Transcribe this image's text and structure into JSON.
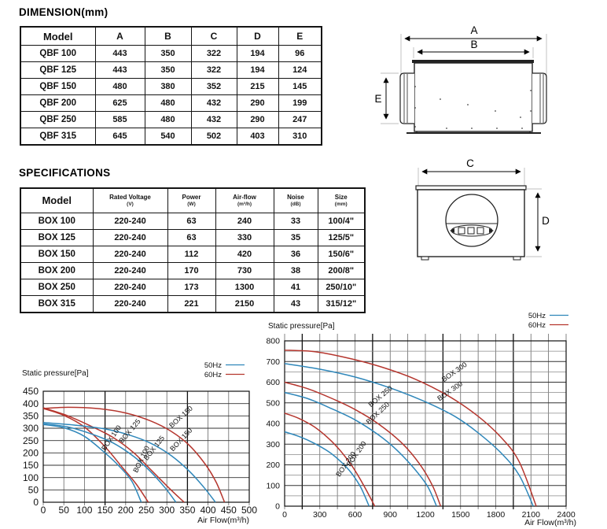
{
  "dimension_section": {
    "title": "DIMENSION(mm)",
    "table": {
      "headers": [
        "Model",
        "A",
        "B",
        "C",
        "D",
        "E"
      ],
      "rows": [
        [
          "QBF 100",
          "443",
          "350",
          "322",
          "194",
          "96"
        ],
        [
          "QBF 125",
          "443",
          "350",
          "322",
          "194",
          "124"
        ],
        [
          "QBF 150",
          "480",
          "380",
          "352",
          "215",
          "145"
        ],
        [
          "QBF 200",
          "625",
          "480",
          "432",
          "290",
          "199"
        ],
        [
          "QBF 250",
          "585",
          "480",
          "432",
          "290",
          "247"
        ],
        [
          "QBF 315",
          "645",
          "540",
          "502",
          "403",
          "310"
        ]
      ]
    }
  },
  "specifications_section": {
    "title": "SPECIFICATIONS",
    "table": {
      "headers": [
        {
          "name": "Model",
          "unit": ""
        },
        {
          "name": "Rated Voltage",
          "unit": "(V)"
        },
        {
          "name": "Power",
          "unit": "(W)"
        },
        {
          "name": "Air-flow",
          "unit": "(m³/h)"
        },
        {
          "name": "Noise",
          "unit": "(dB)"
        },
        {
          "name": "Size",
          "unit": "(mm)"
        }
      ],
      "rows": [
        [
          "BOX 100",
          "220-240",
          "63",
          "240",
          "33",
          "100/4\""
        ],
        [
          "BOX 125",
          "220-240",
          "63",
          "330",
          "35",
          "125/5\""
        ],
        [
          "BOX 150",
          "220-240",
          "112",
          "420",
          "36",
          "150/6\""
        ],
        [
          "BOX 200",
          "220-240",
          "170",
          "730",
          "38",
          "200/8\""
        ],
        [
          "BOX 250",
          "220-240",
          "173",
          "1300",
          "41",
          "250/10\""
        ],
        [
          "BOX 315",
          "220-240",
          "221",
          "2150",
          "43",
          "315/12\""
        ]
      ]
    }
  },
  "diagrams": {
    "side_view": {
      "a": "A",
      "b": "B",
      "e": "E"
    },
    "front_view": {
      "c": "C",
      "d": "D"
    }
  },
  "chart_data": [
    {
      "type": "line",
      "title": "Static pressure[Pa]",
      "xlabel": "Air Flow(m³/h)",
      "ylabel": "Static pressure[Pa]",
      "xlim": [
        0,
        500
      ],
      "ylim": [
        0,
        450
      ],
      "xtick_step": 50,
      "ytick_step": 50,
      "grid": true,
      "dark_vlines": [
        150,
        350
      ],
      "legend": [
        {
          "label": "50Hz",
          "color": "#2f87ba"
        },
        {
          "label": "60Hz",
          "color": "#b5362e"
        }
      ],
      "series": [
        {
          "name": "BOX 100",
          "freq": "50Hz",
          "color": "#2f87ba",
          "points": [
            [
              0,
              315
            ],
            [
              50,
              302
            ],
            [
              100,
              267
            ],
            [
              150,
              200
            ],
            [
              185,
              145
            ],
            [
              215,
              85
            ],
            [
              238,
              0
            ]
          ]
        },
        {
          "name": "BOX 100",
          "freq": "60Hz",
          "color": "#b5362e",
          "points": [
            [
              0,
              380
            ],
            [
              50,
              352
            ],
            [
              100,
              305
            ],
            [
              150,
              225
            ],
            [
              190,
              145
            ],
            [
              225,
              75
            ],
            [
              255,
              0
            ]
          ]
        },
        {
          "name": "BOX 125",
          "freq": "50Hz",
          "color": "#2f87ba",
          "points": [
            [
              0,
              318
            ],
            [
              60,
              305
            ],
            [
              120,
              275
            ],
            [
              170,
              240
            ],
            [
              220,
              185
            ],
            [
              260,
              125
            ],
            [
              295,
              60
            ],
            [
              322,
              0
            ]
          ]
        },
        {
          "name": "BOX 125",
          "freq": "60Hz",
          "color": "#b5362e",
          "points": [
            [
              0,
              383
            ],
            [
              60,
              350
            ],
            [
              120,
              305
            ],
            [
              170,
              262
            ],
            [
              220,
              200
            ],
            [
              265,
              125
            ],
            [
              310,
              50
            ],
            [
              342,
              0
            ]
          ]
        },
        {
          "name": "BOX 150",
          "freq": "50Hz",
          "color": "#2f87ba",
          "points": [
            [
              0,
              323
            ],
            [
              80,
              312
            ],
            [
              150,
              297
            ],
            [
              210,
              272
            ],
            [
              260,
              240
            ],
            [
              310,
              190
            ],
            [
              355,
              125
            ],
            [
              390,
              60
            ],
            [
              418,
              0
            ]
          ]
        },
        {
          "name": "BOX 150",
          "freq": "60Hz",
          "color": "#b5362e",
          "points": [
            [
              0,
              380
            ],
            [
              60,
              385
            ],
            [
              130,
              380
            ],
            [
              200,
              362
            ],
            [
              260,
              330
            ],
            [
              310,
              288
            ],
            [
              355,
              230
            ],
            [
              395,
              150
            ],
            [
              420,
              80
            ],
            [
              440,
              0
            ]
          ]
        }
      ],
      "curve_labels": [
        {
          "text": "BOX 100",
          "x": 150,
          "y": 208,
          "angle": -55
        },
        {
          "text": "BOX 100",
          "x": 228,
          "y": 118,
          "angle": -64
        },
        {
          "text": "BOX 125",
          "x": 192,
          "y": 238,
          "angle": -50
        },
        {
          "text": "BOX 125",
          "x": 252,
          "y": 168,
          "angle": -52
        },
        {
          "text": "BOX 150",
          "x": 312,
          "y": 300,
          "angle": -42
        },
        {
          "text": "BOX 150",
          "x": 315,
          "y": 205,
          "angle": -47
        }
      ]
    },
    {
      "type": "line",
      "title": "Static pressure[Pa]",
      "xlabel": "Air Flow(m³/h)",
      "ylabel": "Static pressure[Pa]",
      "xlim": [
        0,
        2400
      ],
      "ylim": [
        0,
        800
      ],
      "xtick_step": 300,
      "ytick_step": 100,
      "minor_x_step": 150,
      "minor_y_step": 50,
      "grid": true,
      "dark_vlines": [
        150,
        750,
        1350,
        1950
      ],
      "legend": [
        {
          "label": "50Hz",
          "color": "#2f87ba"
        },
        {
          "label": "60Hz",
          "color": "#b5362e"
        }
      ],
      "series": [
        {
          "name": "BOX 200",
          "freq": "50Hz",
          "color": "#2f87ba",
          "points": [
            [
              0,
              360
            ],
            [
              120,
              338
            ],
            [
              250,
              305
            ],
            [
              380,
              262
            ],
            [
              480,
              215
            ],
            [
              570,
              160
            ],
            [
              650,
              90
            ],
            [
              720,
              0
            ]
          ]
        },
        {
          "name": "BOX 200",
          "freq": "60Hz",
          "color": "#b5362e",
          "points": [
            [
              0,
              450
            ],
            [
              120,
              425
            ],
            [
              250,
              385
            ],
            [
              380,
              325
            ],
            [
              480,
              265
            ],
            [
              580,
              190
            ],
            [
              680,
              95
            ],
            [
              768,
              0
            ]
          ]
        },
        {
          "name": "BOX 250",
          "freq": "50Hz",
          "color": "#2f87ba",
          "points": [
            [
              0,
              550
            ],
            [
              200,
              520
            ],
            [
              400,
              472
            ],
            [
              600,
              418
            ],
            [
              800,
              345
            ],
            [
              950,
              275
            ],
            [
              1100,
              185
            ],
            [
              1220,
              95
            ],
            [
              1295,
              0
            ]
          ]
        },
        {
          "name": "BOX 250",
          "freq": "60Hz",
          "color": "#b5362e",
          "points": [
            [
              0,
              600
            ],
            [
              200,
              568
            ],
            [
              400,
              522
            ],
            [
              600,
              468
            ],
            [
              800,
              398
            ],
            [
              1000,
              305
            ],
            [
              1150,
              205
            ],
            [
              1260,
              100
            ],
            [
              1330,
              0
            ]
          ]
        },
        {
          "name": "BOX 300",
          "freq": "50Hz",
          "color": "#2f87ba",
          "points": [
            [
              0,
              690
            ],
            [
              300,
              663
            ],
            [
              600,
              625
            ],
            [
              900,
              572
            ],
            [
              1200,
              505
            ],
            [
              1450,
              435
            ],
            [
              1650,
              355
            ],
            [
              1850,
              255
            ],
            [
              2000,
              150
            ],
            [
              2120,
              0
            ]
          ]
        },
        {
          "name": "BOX 300",
          "freq": "60Hz",
          "color": "#b5362e",
          "points": [
            [
              0,
              755
            ],
            [
              250,
              748
            ],
            [
              500,
              722
            ],
            [
              800,
              678
            ],
            [
              1100,
              618
            ],
            [
              1400,
              532
            ],
            [
              1650,
              435
            ],
            [
              1850,
              330
            ],
            [
              2000,
              215
            ],
            [
              2145,
              0
            ]
          ]
        }
      ],
      "curve_labels": [
        {
          "text": "BOX 200",
          "x": 468,
          "y": 140,
          "angle": -55
        },
        {
          "text": "BOX 200",
          "x": 558,
          "y": 190,
          "angle": -55
        },
        {
          "text": "BOX 250",
          "x": 718,
          "y": 395,
          "angle": -43
        },
        {
          "text": "BOX 250",
          "x": 735,
          "y": 478,
          "angle": -40
        },
        {
          "text": "BOX 300",
          "x": 1320,
          "y": 508,
          "angle": -35
        },
        {
          "text": "BOX 300",
          "x": 1358,
          "y": 600,
          "angle": -35
        }
      ]
    }
  ]
}
